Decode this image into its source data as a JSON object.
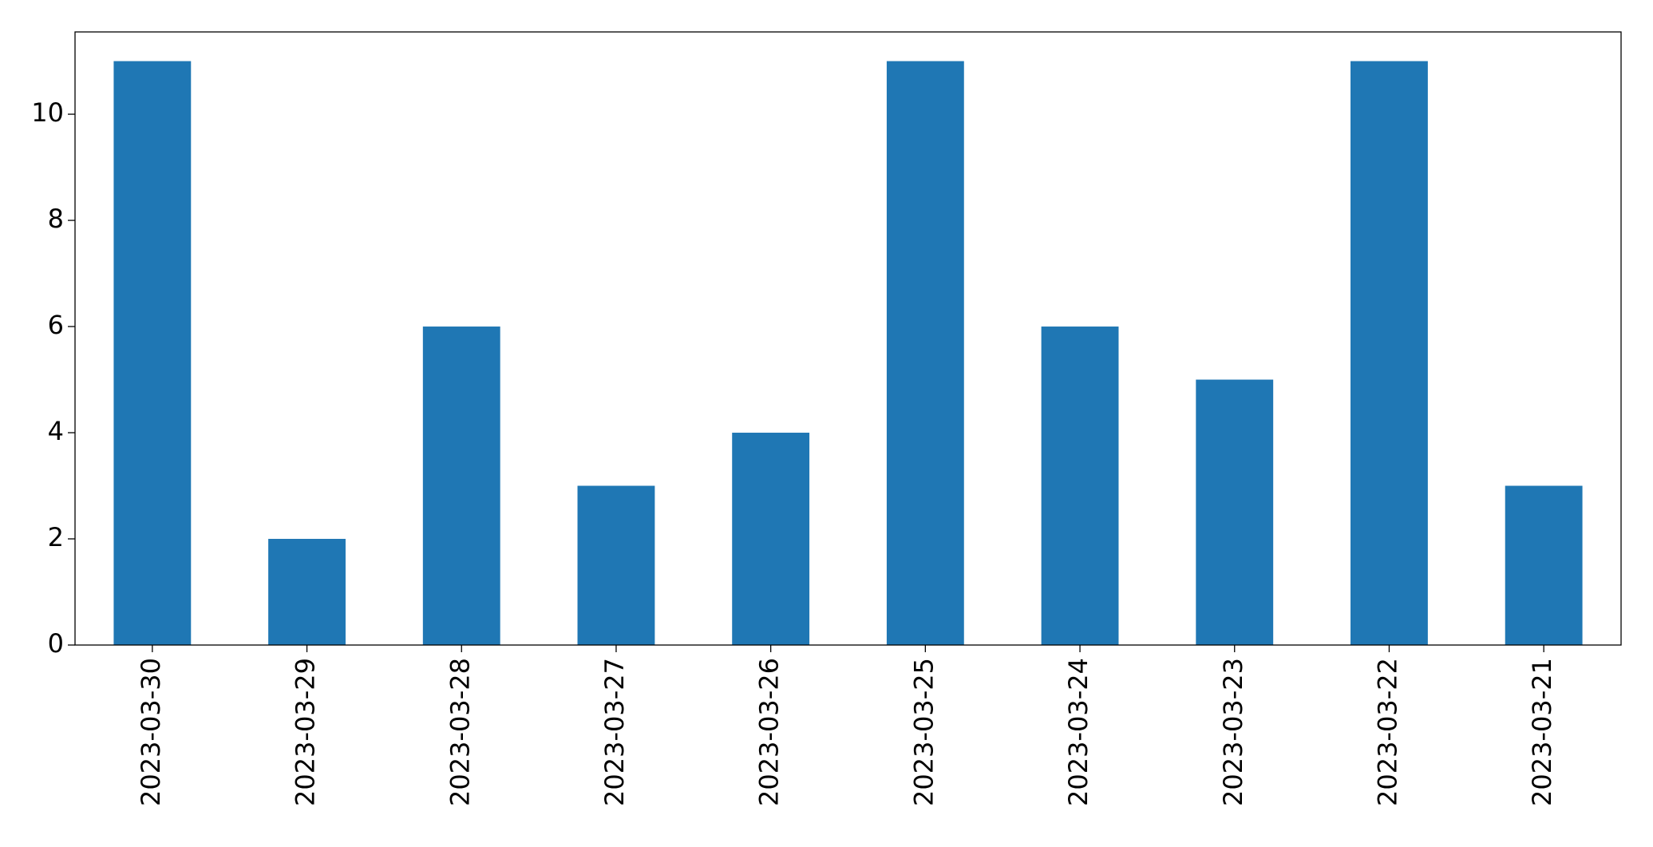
{
  "chart_data": {
    "type": "bar",
    "categories": [
      "2023-03-30",
      "2023-03-29",
      "2023-03-28",
      "2023-03-27",
      "2023-03-26",
      "2023-03-25",
      "2023-03-24",
      "2023-03-23",
      "2023-03-22",
      "2023-03-21"
    ],
    "values": [
      11,
      2,
      6,
      3,
      4,
      11,
      6,
      5,
      11,
      3
    ],
    "color": "#1f77b4",
    "ylim": [
      0,
      11.55
    ],
    "yticks": [
      0,
      2,
      4,
      6,
      8,
      10
    ],
    "grid": false
  }
}
